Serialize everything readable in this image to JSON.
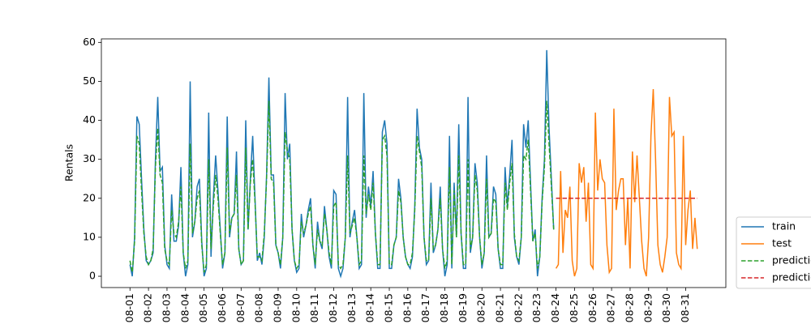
{
  "chart_data": {
    "type": "line",
    "ylabel": "Rentals",
    "xlim": [
      -12.35,
      257.35
    ],
    "ylim": [
      -2.9,
      60.9
    ],
    "yticks": [
      0,
      10,
      20,
      30,
      40,
      50,
      60
    ],
    "xticks": [
      {
        "value": 0,
        "label": "08-01"
      },
      {
        "value": 8,
        "label": "08-02"
      },
      {
        "value": 16,
        "label": "08-03"
      },
      {
        "value": 24,
        "label": "08-04"
      },
      {
        "value": 32,
        "label": "08-05"
      },
      {
        "value": 40,
        "label": "08-06"
      },
      {
        "value": 48,
        "label": "08-07"
      },
      {
        "value": 56,
        "label": "08-08"
      },
      {
        "value": 64,
        "label": "08-09"
      },
      {
        "value": 72,
        "label": "08-10"
      },
      {
        "value": 80,
        "label": "08-11"
      },
      {
        "value": 88,
        "label": "08-12"
      },
      {
        "value": 96,
        "label": "08-13"
      },
      {
        "value": 104,
        "label": "08-14"
      },
      {
        "value": 112,
        "label": "08-15"
      },
      {
        "value": 120,
        "label": "08-16"
      },
      {
        "value": 128,
        "label": "08-17"
      },
      {
        "value": 136,
        "label": "08-18"
      },
      {
        "value": 144,
        "label": "08-19"
      },
      {
        "value": 152,
        "label": "08-20"
      },
      {
        "value": 160,
        "label": "08-21"
      },
      {
        "value": 168,
        "label": "08-22"
      },
      {
        "value": 176,
        "label": "08-23"
      },
      {
        "value": 184,
        "label": "08-24"
      },
      {
        "value": 192,
        "label": "08-25"
      },
      {
        "value": 200,
        "label": "08-26"
      },
      {
        "value": 208,
        "label": "08-27"
      },
      {
        "value": 216,
        "label": "08-28"
      },
      {
        "value": 224,
        "label": "08-29"
      },
      {
        "value": 232,
        "label": "08-30"
      },
      {
        "value": 240,
        "label": "08-31"
      }
    ],
    "legend": "outside right",
    "series": [
      {
        "name": "train",
        "color": "#1f77b4",
        "linestyle": "solid",
        "x": [
          0,
          1,
          2,
          3,
          4,
          5,
          6,
          7,
          8,
          9,
          10,
          11,
          12,
          13,
          14,
          15,
          16,
          17,
          18,
          19,
          20,
          21,
          22,
          23,
          24,
          25,
          26,
          27,
          28,
          29,
          30,
          31,
          32,
          33,
          34,
          35,
          36,
          37,
          38,
          39,
          40,
          41,
          42,
          43,
          44,
          45,
          46,
          47,
          48,
          49,
          50,
          51,
          52,
          53,
          54,
          55,
          56,
          57,
          58,
          59,
          60,
          61,
          62,
          63,
          64,
          65,
          66,
          67,
          68,
          69,
          70,
          71,
          72,
          73,
          74,
          75,
          76,
          77,
          78,
          79,
          80,
          81,
          82,
          83,
          84,
          85,
          86,
          87,
          88,
          89,
          90,
          91,
          92,
          93,
          94,
          95,
          96,
          97,
          98,
          99,
          100,
          101,
          102,
          103,
          104,
          105,
          106,
          107,
          108,
          109,
          110,
          111,
          112,
          113,
          114,
          115,
          116,
          117,
          118,
          119,
          120,
          121,
          122,
          123,
          124,
          125,
          126,
          127,
          128,
          129,
          130,
          131,
          132,
          133,
          134,
          135,
          136,
          137,
          138,
          139,
          140,
          141,
          142,
          143,
          144,
          145,
          146,
          147,
          148,
          149,
          150,
          151,
          152,
          153,
          154,
          155,
          156,
          157,
          158,
          159,
          160,
          161,
          162,
          163,
          164,
          165,
          166,
          167,
          168,
          169,
          170,
          171,
          172,
          173,
          174,
          175,
          176,
          177,
          178,
          179,
          180,
          181,
          182,
          183
        ],
        "values": [
          3,
          0,
          10,
          41,
          39,
          25,
          12,
          4,
          3,
          4,
          6,
          30,
          46,
          27,
          28,
          8,
          3,
          2,
          21,
          9,
          9,
          13,
          28,
          6,
          0,
          3,
          50,
          10,
          14,
          23,
          25,
          9,
          0,
          2,
          42,
          5,
          20,
          31,
          22,
          12,
          2,
          6,
          41,
          10,
          15,
          16,
          32,
          7,
          3,
          4,
          40,
          12,
          25,
          36,
          20,
          4,
          6,
          3,
          10,
          26,
          51,
          26,
          26,
          8,
          6,
          2,
          10,
          47,
          30,
          34,
          12,
          4,
          1,
          2,
          16,
          10,
          13,
          17,
          20,
          8,
          2,
          14,
          9,
          7,
          18,
          12,
          5,
          2,
          22,
          21,
          2,
          0,
          2,
          10,
          46,
          10,
          14,
          17,
          10,
          2,
          3,
          47,
          15,
          23,
          18,
          27,
          11,
          2,
          2,
          37,
          40,
          34,
          2,
          2,
          8,
          10,
          25,
          20,
          10,
          5,
          3,
          2,
          5,
          18,
          43,
          33,
          30,
          10,
          3,
          4,
          24,
          6,
          8,
          12,
          23,
          7,
          0,
          3,
          36,
          2,
          24,
          10,
          39,
          11,
          2,
          2,
          46,
          6,
          10,
          29,
          24,
          10,
          2,
          6,
          31,
          10,
          11,
          23,
          21,
          7,
          2,
          2,
          28,
          18,
          26,
          35,
          10,
          5,
          3,
          10,
          39,
          33,
          40,
          24,
          9,
          12,
          0,
          5,
          20,
          30,
          58,
          38,
          25,
          12
        ]
      },
      {
        "name": "test",
        "color": "#ff7f0e",
        "linestyle": "solid",
        "x": [
          184,
          185,
          186,
          187,
          188,
          189,
          190,
          191,
          192,
          193,
          194,
          195,
          196,
          197,
          198,
          199,
          200,
          201,
          202,
          203,
          204,
          205,
          206,
          207,
          208,
          209,
          210,
          211,
          212,
          213,
          214,
          215,
          216,
          217,
          218,
          219,
          220,
          221,
          222,
          223,
          224,
          225,
          226,
          227,
          228,
          229,
          230,
          231,
          232,
          233,
          234,
          235,
          236,
          237,
          238,
          239,
          240,
          241,
          242,
          243,
          244,
          245
        ],
        "values": [
          2,
          3,
          27,
          6,
          17,
          15,
          23,
          4,
          0,
          2,
          29,
          24,
          28,
          14,
          24,
          3,
          2,
          42,
          22,
          30,
          25,
          24,
          8,
          1,
          2,
          43,
          17,
          22,
          25,
          25,
          8,
          20,
          2,
          32,
          19,
          31,
          20,
          9,
          2,
          0,
          10,
          36,
          48,
          30,
          8,
          3,
          1,
          5,
          10,
          46,
          36,
          37,
          6,
          3,
          2,
          36,
          8,
          17,
          22,
          7,
          15,
          7
        ]
      },
      {
        "name": "prediction train",
        "color": "#2ca02c",
        "linestyle": "dashed",
        "x": [
          0,
          1,
          2,
          3,
          4,
          5,
          6,
          7,
          8,
          9,
          10,
          11,
          12,
          13,
          14,
          15,
          16,
          17,
          18,
          19,
          20,
          21,
          22,
          23,
          24,
          25,
          26,
          27,
          28,
          29,
          30,
          31,
          32,
          33,
          34,
          35,
          36,
          37,
          38,
          39,
          40,
          41,
          42,
          43,
          44,
          45,
          46,
          47,
          48,
          49,
          50,
          51,
          52,
          53,
          54,
          55,
          56,
          57,
          58,
          59,
          60,
          61,
          62,
          63,
          64,
          65,
          66,
          67,
          68,
          69,
          70,
          71,
          72,
          73,
          74,
          75,
          76,
          77,
          78,
          79,
          80,
          81,
          82,
          83,
          84,
          85,
          86,
          87,
          88,
          89,
          90,
          91,
          92,
          93,
          94,
          95,
          96,
          97,
          98,
          99,
          100,
          101,
          102,
          103,
          104,
          105,
          106,
          107,
          108,
          109,
          110,
          111,
          112,
          113,
          114,
          115,
          116,
          117,
          118,
          119,
          120,
          121,
          122,
          123,
          124,
          125,
          126,
          127,
          128,
          129,
          130,
          131,
          132,
          133,
          134,
          135,
          136,
          137,
          138,
          139,
          140,
          141,
          142,
          143,
          144,
          145,
          146,
          147,
          148,
          149,
          150,
          151,
          152,
          153,
          154,
          155,
          156,
          157,
          158,
          159,
          160,
          161,
          162,
          163,
          164,
          165,
          166,
          167,
          168,
          169,
          170,
          171,
          172,
          173,
          174,
          175,
          176,
          177,
          178,
          179,
          180,
          181,
          182,
          183
        ],
        "values": [
          4,
          1,
          9,
          36,
          34,
          22,
          11,
          5,
          3,
          4,
          7,
          28,
          38,
          26,
          24,
          7,
          4,
          3,
          17,
          11,
          10,
          14,
          23,
          6,
          2,
          4,
          34,
          11,
          14,
          20,
          22,
          8,
          1,
          3,
          30,
          7,
          18,
          26,
          20,
          11,
          3,
          6,
          33,
          11,
          15,
          16,
          26,
          7,
          3,
          4,
          33,
          12,
          24,
          30,
          19,
          5,
          5,
          4,
          11,
          25,
          45,
          25,
          24,
          8,
          6,
          3,
          10,
          37,
          32,
          30,
          12,
          4,
          2,
          3,
          14,
          11,
          13,
          16,
          18,
          8,
          3,
          12,
          9,
          8,
          16,
          12,
          6,
          3,
          18,
          19,
          3,
          2,
          3,
          10,
          31,
          11,
          13,
          15,
          10,
          3,
          4,
          31,
          16,
          21,
          17,
          24,
          11,
          3,
          3,
          35,
          36,
          31,
          3,
          3,
          8,
          10,
          22,
          19,
          10,
          5,
          3,
          3,
          6,
          17,
          36,
          32,
          28,
          10,
          4,
          4,
          20,
          7,
          8,
          12,
          20,
          7,
          2,
          4,
          28,
          3,
          22,
          10,
          31,
          11,
          3,
          3,
          30,
          7,
          10,
          26,
          22,
          10,
          3,
          6,
          25,
          10,
          11,
          20,
          19,
          7,
          3,
          3,
          24,
          17,
          24,
          29,
          11,
          5,
          4,
          10,
          31,
          30,
          35,
          22,
          9,
          11,
          2,
          5,
          19,
          28,
          45,
          34,
          23,
          12
        ]
      },
      {
        "name": "prediction test",
        "color": "#d62728",
        "linestyle": "dashed",
        "x": [
          184,
          185,
          186,
          187,
          188,
          189,
          190,
          191,
          192,
          193,
          194,
          195,
          196,
          197,
          198,
          199,
          200,
          201,
          202,
          203,
          204,
          205,
          206,
          207,
          208,
          209,
          210,
          211,
          212,
          213,
          214,
          215,
          216,
          217,
          218,
          219,
          220,
          221,
          222,
          223,
          224,
          225,
          226,
          227,
          228,
          229,
          230,
          231,
          232,
          233,
          234,
          235,
          236,
          237,
          238,
          239,
          240,
          241,
          242,
          243,
          244,
          245
        ],
        "values": [
          20,
          20,
          20,
          20,
          20,
          20,
          20,
          20,
          20,
          20,
          20,
          20,
          20,
          20,
          20,
          20,
          20,
          20,
          20,
          20,
          20,
          20,
          20,
          20,
          20,
          20,
          20,
          20,
          20,
          20,
          20,
          20,
          20,
          20,
          20,
          20,
          20,
          20,
          20,
          20,
          20,
          20,
          20,
          20,
          20,
          20,
          20,
          20,
          20,
          20,
          20,
          20,
          20,
          20,
          20,
          20,
          20,
          20,
          20,
          20,
          20,
          20
        ]
      }
    ]
  }
}
